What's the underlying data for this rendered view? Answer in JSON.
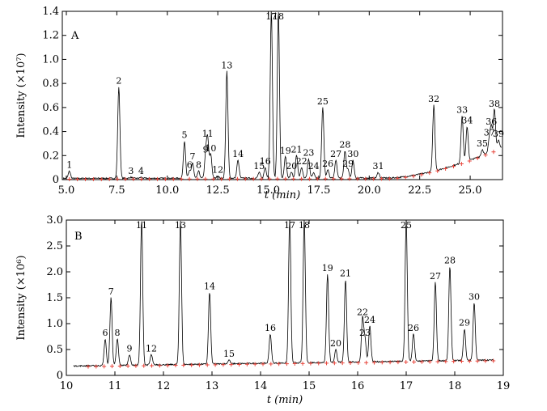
{
  "chart_data": [
    {
      "type": "line",
      "panel_label": "A",
      "ylabel": "Intensity (×10⁷)",
      "xlabel": "t (min)",
      "xlim": [
        4.8,
        26.6
      ],
      "ylim": [
        0,
        1.4
      ],
      "x_ticks": [
        5.0,
        7.5,
        10.0,
        12.5,
        15.0,
        17.5,
        20.0,
        22.5,
        25.0
      ],
      "x_tick_labels": [
        "5.0",
        "7.5",
        "10.0",
        "12.5",
        "15.0",
        "17.5",
        "20.0",
        "22.5",
        "25.0"
      ],
      "y_ticks": [
        0,
        0.2,
        0.4,
        0.6,
        0.8,
        1.0,
        1.2,
        1.4
      ],
      "y_tick_labels": [
        "0",
        "0.2",
        "0.4",
        "0.6",
        "0.8",
        "1.0",
        "1.2",
        "1.4"
      ],
      "series": [
        {
          "peaks": [
            {
              "label": "1",
              "x": 5.15,
              "y": 0.07
            },
            {
              "label": "2",
              "x": 7.6,
              "y": 0.77
            },
            {
              "label": "3",
              "x": 8.2,
              "y": 0.02
            },
            {
              "label": "4",
              "x": 8.7,
              "y": 0.02
            },
            {
              "label": "5",
              "x": 10.85,
              "y": 0.32
            },
            {
              "label": "6",
              "x": 11.1,
              "y": 0.07
            },
            {
              "label": "7",
              "x": 11.25,
              "y": 0.14
            },
            {
              "label": "8",
              "x": 11.55,
              "y": 0.07
            },
            {
              "label": "9",
              "x": 11.9,
              "y": 0.2
            },
            {
              "label": "10",
              "x": 12.15,
              "y": 0.21
            },
            {
              "label": "11",
              "x": 12.0,
              "y": 0.33
            },
            {
              "label": "12",
              "x": 12.5,
              "y": 0.03
            },
            {
              "label": "13",
              "x": 12.95,
              "y": 0.9
            },
            {
              "label": "14",
              "x": 13.5,
              "y": 0.16
            },
            {
              "label": "15",
              "x": 14.55,
              "y": 0.06
            },
            {
              "label": "16",
              "x": 14.85,
              "y": 0.1
            },
            {
              "label": "17",
              "x": 15.15,
              "y": 1.4
            },
            {
              "label": "18",
              "x": 15.5,
              "y": 1.4
            },
            {
              "label": "19",
              "x": 15.85,
              "y": 0.19
            },
            {
              "label": "20",
              "x": 16.15,
              "y": 0.06
            },
            {
              "label": "21",
              "x": 16.4,
              "y": 0.2
            },
            {
              "label": "22",
              "x": 16.65,
              "y": 0.1
            },
            {
              "label": "23",
              "x": 17.0,
              "y": 0.17
            },
            {
              "label": "24",
              "x": 17.25,
              "y": 0.06
            },
            {
              "label": "25",
              "x": 17.7,
              "y": 0.6
            },
            {
              "label": "26",
              "x": 17.95,
              "y": 0.08
            },
            {
              "label": "27",
              "x": 18.35,
              "y": 0.16
            },
            {
              "label": "28",
              "x": 18.8,
              "y": 0.24
            },
            {
              "label": "29",
              "x": 18.95,
              "y": 0.08
            },
            {
              "label": "30",
              "x": 19.2,
              "y": 0.16
            },
            {
              "label": "31",
              "x": 20.45,
              "y": 0.06
            },
            {
              "label": "32",
              "x": 23.2,
              "y": 0.62
            },
            {
              "label": "33",
              "x": 24.6,
              "y": 0.53
            },
            {
              "label": "34",
              "x": 24.85,
              "y": 0.44
            },
            {
              "label": "35",
              "x": 25.6,
              "y": 0.25
            },
            {
              "label": "36",
              "x": 26.05,
              "y": 0.43
            },
            {
              "label": "37",
              "x": 25.95,
              "y": 0.34
            },
            {
              "label": "38",
              "x": 26.2,
              "y": 0.58
            },
            {
              "label": "39",
              "x": 26.4,
              "y": 0.33
            }
          ]
        }
      ]
    },
    {
      "type": "line",
      "panel_label": "B",
      "ylabel": "Intensity (×10⁶)",
      "xlabel": "t (min)",
      "xlim": [
        10,
        19
      ],
      "ylim": [
        0,
        3.0
      ],
      "x_ticks": [
        10,
        11,
        12,
        13,
        14,
        15,
        16,
        17,
        18,
        19
      ],
      "x_tick_labels": [
        "10",
        "11",
        "12",
        "13",
        "14",
        "15",
        "16",
        "17",
        "18",
        "19"
      ],
      "y_ticks": [
        0,
        0.5,
        1.0,
        1.5,
        2.0,
        2.5,
        3.0
      ],
      "y_tick_labels": [
        "0",
        "0.5",
        "1.0",
        "1.5",
        "2.0",
        "2.5",
        "3.0"
      ],
      "series": [
        {
          "peaks": [
            {
              "label": "6",
              "x": 10.8,
              "y": 0.7
            },
            {
              "label": "7",
              "x": 10.92,
              "y": 1.5
            },
            {
              "label": "8",
              "x": 11.05,
              "y": 0.7
            },
            {
              "label": "9",
              "x": 11.3,
              "y": 0.4
            },
            {
              "label": "11",
              "x": 11.55,
              "y": 3.0
            },
            {
              "label": "12",
              "x": 11.75,
              "y": 0.4
            },
            {
              "label": "13",
              "x": 12.35,
              "y": 3.0
            },
            {
              "label": "14",
              "x": 12.95,
              "y": 1.6
            },
            {
              "label": "15",
              "x": 13.35,
              "y": 0.3
            },
            {
              "label": "16",
              "x": 14.2,
              "y": 0.8
            },
            {
              "label": "17",
              "x": 14.6,
              "y": 3.0
            },
            {
              "label": "18",
              "x": 14.9,
              "y": 3.0
            },
            {
              "label": "19",
              "x": 15.38,
              "y": 1.95
            },
            {
              "label": "20",
              "x": 15.55,
              "y": 0.5
            },
            {
              "label": "21",
              "x": 15.75,
              "y": 1.85
            },
            {
              "label": "22",
              "x": 16.1,
              "y": 1.1
            },
            {
              "label": "23",
              "x": 16.15,
              "y": 0.7
            },
            {
              "label": "24",
              "x": 16.25,
              "y": 0.95
            },
            {
              "label": "25",
              "x": 17.0,
              "y": 3.0
            },
            {
              "label": "26",
              "x": 17.15,
              "y": 0.8
            },
            {
              "label": "27",
              "x": 17.6,
              "y": 1.8
            },
            {
              "label": "28",
              "x": 17.9,
              "y": 2.1
            },
            {
              "label": "29",
              "x": 18.2,
              "y": 0.9
            },
            {
              "label": "30",
              "x": 18.4,
              "y": 1.4
            }
          ]
        }
      ]
    }
  ]
}
